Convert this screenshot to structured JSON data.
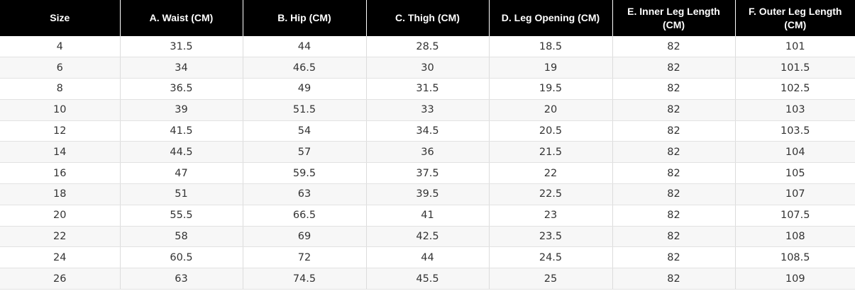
{
  "table": {
    "headers": [
      "Size",
      "A. Waist (CM)",
      "B. Hip (CM)",
      "C. Thigh (CM)",
      "D. Leg Opening (CM)",
      "E. Inner Leg Length (CM)",
      "F. Outer Leg Length (CM)"
    ],
    "rows": [
      [
        "4",
        "31.5",
        "44",
        "28.5",
        "18.5",
        "82",
        "101"
      ],
      [
        "6",
        "34",
        "46.5",
        "30",
        "19",
        "82",
        "101.5"
      ],
      [
        "8",
        "36.5",
        "49",
        "31.5",
        "19.5",
        "82",
        "102.5"
      ],
      [
        "10",
        "39",
        "51.5",
        "33",
        "20",
        "82",
        "103"
      ],
      [
        "12",
        "41.5",
        "54",
        "34.5",
        "20.5",
        "82",
        "103.5"
      ],
      [
        "14",
        "44.5",
        "57",
        "36",
        "21.5",
        "82",
        "104"
      ],
      [
        "16",
        "47",
        "59.5",
        "37.5",
        "22",
        "82",
        "105"
      ],
      [
        "18",
        "51",
        "63",
        "39.5",
        "22.5",
        "82",
        "107"
      ],
      [
        "20",
        "55.5",
        "66.5",
        "41",
        "23",
        "82",
        "107.5"
      ],
      [
        "22",
        "58",
        "69",
        "42.5",
        "23.5",
        "82",
        "108"
      ],
      [
        "24",
        "60.5",
        "72",
        "44",
        "24.5",
        "82",
        "108.5"
      ],
      [
        "26",
        "63",
        "74.5",
        "45.5",
        "25",
        "82",
        "109"
      ]
    ]
  },
  "colors": {
    "header_bg": "#000000",
    "header_text": "#ffffff",
    "stripe_bg": "#f7f7f7",
    "cell_text": "#333333"
  }
}
